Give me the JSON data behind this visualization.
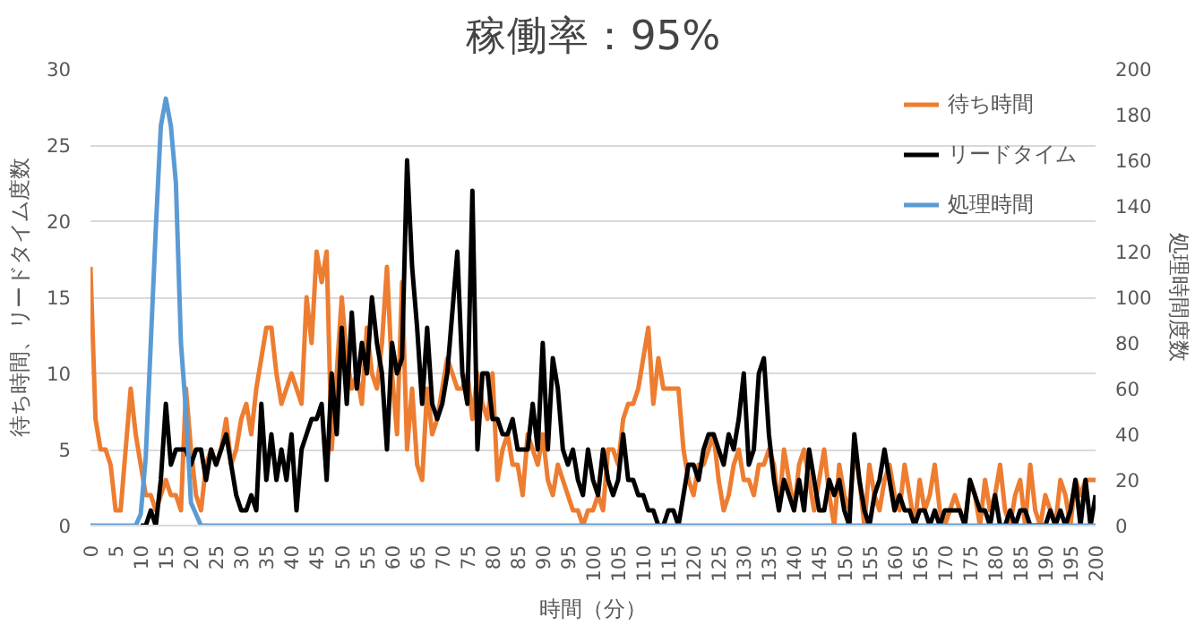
{
  "chart_data": {
    "type": "line",
    "title": "稼働率：95%",
    "xlabel": "時間（分）",
    "ylabel": "待ち時間、リードタイム度数",
    "y2label": "処理時間度数",
    "x": [
      0,
      1,
      2,
      3,
      4,
      5,
      6,
      7,
      8,
      9,
      10,
      11,
      12,
      13,
      14,
      15,
      16,
      17,
      18,
      19,
      20,
      21,
      22,
      23,
      24,
      25,
      26,
      27,
      28,
      29,
      30,
      31,
      32,
      33,
      34,
      35,
      36,
      37,
      38,
      39,
      40,
      41,
      42,
      43,
      44,
      45,
      46,
      47,
      48,
      49,
      50,
      51,
      52,
      53,
      54,
      55,
      56,
      57,
      58,
      59,
      60,
      61,
      62,
      63,
      64,
      65,
      66,
      67,
      68,
      69,
      70,
      71,
      72,
      73,
      74,
      75,
      76,
      77,
      78,
      79,
      80,
      81,
      82,
      83,
      84,
      85,
      86,
      87,
      88,
      89,
      90,
      91,
      92,
      93,
      94,
      95,
      96,
      97,
      98,
      99,
      100,
      101,
      102,
      103,
      104,
      105,
      106,
      107,
      108,
      109,
      110,
      111,
      112,
      113,
      114,
      115,
      116,
      117,
      118,
      119,
      120,
      121,
      122,
      123,
      124,
      125,
      126,
      127,
      128,
      129,
      130,
      131,
      132,
      133,
      134,
      135,
      136,
      137,
      138,
      139,
      140,
      141,
      142,
      143,
      144,
      145,
      146,
      147,
      148,
      149,
      150,
      151,
      152,
      153,
      154,
      155,
      156,
      157,
      158,
      159,
      160,
      161,
      162,
      163,
      164,
      165,
      166,
      167,
      168,
      169,
      170,
      171,
      172,
      173,
      174,
      175,
      176,
      177,
      178,
      179,
      180,
      181,
      182,
      183,
      184,
      185,
      186,
      187,
      188,
      189,
      190,
      191,
      192,
      193,
      194,
      195,
      196,
      197,
      198,
      199,
      200
    ],
    "series": [
      {
        "name": "待ち時間",
        "color": "#ed7d31",
        "values": [
          17,
          7,
          5,
          5,
          4,
          1,
          1,
          5,
          9,
          6,
          4,
          2,
          2,
          1,
          2,
          3,
          2,
          2,
          1,
          9,
          5,
          2,
          1,
          4,
          5,
          4,
          5,
          7,
          4,
          5,
          7,
          8,
          6,
          9,
          11,
          13,
          13,
          10,
          8,
          9,
          10,
          9,
          8,
          15,
          12,
          18,
          16,
          18,
          5,
          10,
          15,
          11,
          9,
          10,
          8,
          13,
          10,
          9,
          12,
          17,
          10,
          6,
          16,
          5,
          9,
          4,
          3,
          9,
          6,
          7,
          9,
          11,
          10,
          9,
          9,
          10,
          7,
          10,
          8,
          7,
          10,
          3,
          5,
          6,
          4,
          4,
          2,
          6,
          5,
          4,
          6,
          3,
          2,
          4,
          3,
          2,
          1,
          1,
          0,
          1,
          1,
          2,
          1,
          5,
          5,
          4,
          7,
          8,
          8,
          9,
          11,
          13,
          8,
          11,
          9,
          9,
          9,
          9,
          5,
          3,
          2,
          4,
          4,
          5,
          6,
          3,
          1,
          2,
          4,
          5,
          3,
          3,
          2,
          4,
          4,
          5,
          4,
          1,
          5,
          3,
          1,
          4,
          5,
          3,
          1,
          3,
          5,
          2,
          0,
          4,
          2,
          1,
          5,
          3,
          0,
          4,
          2,
          1,
          3,
          4,
          2,
          1,
          4,
          2,
          0,
          3,
          1,
          2,
          4,
          1,
          0,
          1,
          2,
          1,
          0,
          3,
          2,
          0,
          3,
          1,
          2,
          4,
          1,
          0,
          2,
          3,
          0,
          4,
          1,
          0,
          2,
          1,
          0,
          3,
          2,
          0,
          3,
          2,
          3,
          3,
          3
        ]
      },
      {
        "name": "リードタイム",
        "color": "#000000",
        "values": [
          null,
          null,
          null,
          null,
          null,
          null,
          null,
          null,
          null,
          null,
          0,
          0,
          1,
          0,
          3,
          8,
          4,
          5,
          5,
          5,
          4,
          5,
          5,
          3,
          5,
          4,
          5,
          6,
          4,
          2,
          1,
          1,
          2,
          1,
          8,
          3,
          6,
          3,
          5,
          3,
          6,
          1,
          5,
          6,
          7,
          7,
          8,
          3,
          10,
          6,
          13,
          8,
          14,
          9,
          12,
          10,
          15,
          12,
          10,
          5,
          12,
          10,
          11,
          24,
          17,
          13,
          8,
          13,
          8,
          7,
          8,
          10,
          14,
          18,
          10,
          8,
          22,
          5,
          10,
          10,
          7,
          7,
          6,
          6,
          7,
          5,
          5,
          5,
          8,
          5,
          12,
          5,
          11,
          9,
          5,
          4,
          5,
          3,
          2,
          5,
          3,
          2,
          5,
          3,
          2,
          3,
          6,
          3,
          3,
          2,
          2,
          1,
          1,
          0,
          0,
          1,
          1,
          0,
          2,
          4,
          4,
          3,
          5,
          6,
          6,
          5,
          4,
          6,
          5,
          7,
          10,
          4,
          5,
          10,
          11,
          6,
          3,
          1,
          3,
          2,
          1,
          3,
          1,
          5,
          3,
          1,
          1,
          3,
          2,
          3,
          1,
          0,
          6,
          3,
          1,
          0,
          2,
          3,
          5,
          3,
          1,
          2,
          1,
          1,
          0,
          1,
          1,
          0,
          1,
          0,
          1,
          1,
          1,
          1,
          0,
          3,
          2,
          1,
          1,
          0,
          2,
          0,
          0,
          1,
          0,
          1,
          1,
          0,
          0,
          0,
          0,
          1,
          0,
          1,
          0,
          1,
          3,
          0,
          3,
          0,
          2
        ]
      },
      {
        "name": "処理時間",
        "color": "#5b9bd5",
        "axis": "y2",
        "x": [
          0,
          9,
          10,
          11,
          12,
          13,
          14,
          15,
          16,
          17,
          18,
          19,
          20,
          21,
          22,
          200
        ],
        "values": [
          0,
          0,
          5,
          30,
          80,
          130,
          175,
          187,
          175,
          150,
          80,
          50,
          10,
          5,
          0,
          0
        ]
      }
    ],
    "xlim": [
      0,
      200
    ],
    "xticks": [
      0,
      5,
      10,
      15,
      20,
      25,
      30,
      35,
      40,
      45,
      50,
      55,
      60,
      65,
      70,
      75,
      80,
      85,
      90,
      95,
      100,
      105,
      110,
      115,
      120,
      125,
      130,
      135,
      140,
      145,
      150,
      155,
      160,
      165,
      170,
      175,
      180,
      185,
      190,
      195,
      200
    ],
    "ylim": [
      0,
      30
    ],
    "yticks": [
      0,
      5,
      10,
      15,
      20,
      25,
      30
    ],
    "y2lim": [
      0,
      200
    ],
    "y2ticks": [
      0,
      20,
      40,
      60,
      80,
      100,
      120,
      140,
      160,
      180,
      200
    ],
    "grid": "y",
    "legend": "top right",
    "marker": "none",
    "line_style": "solid"
  }
}
